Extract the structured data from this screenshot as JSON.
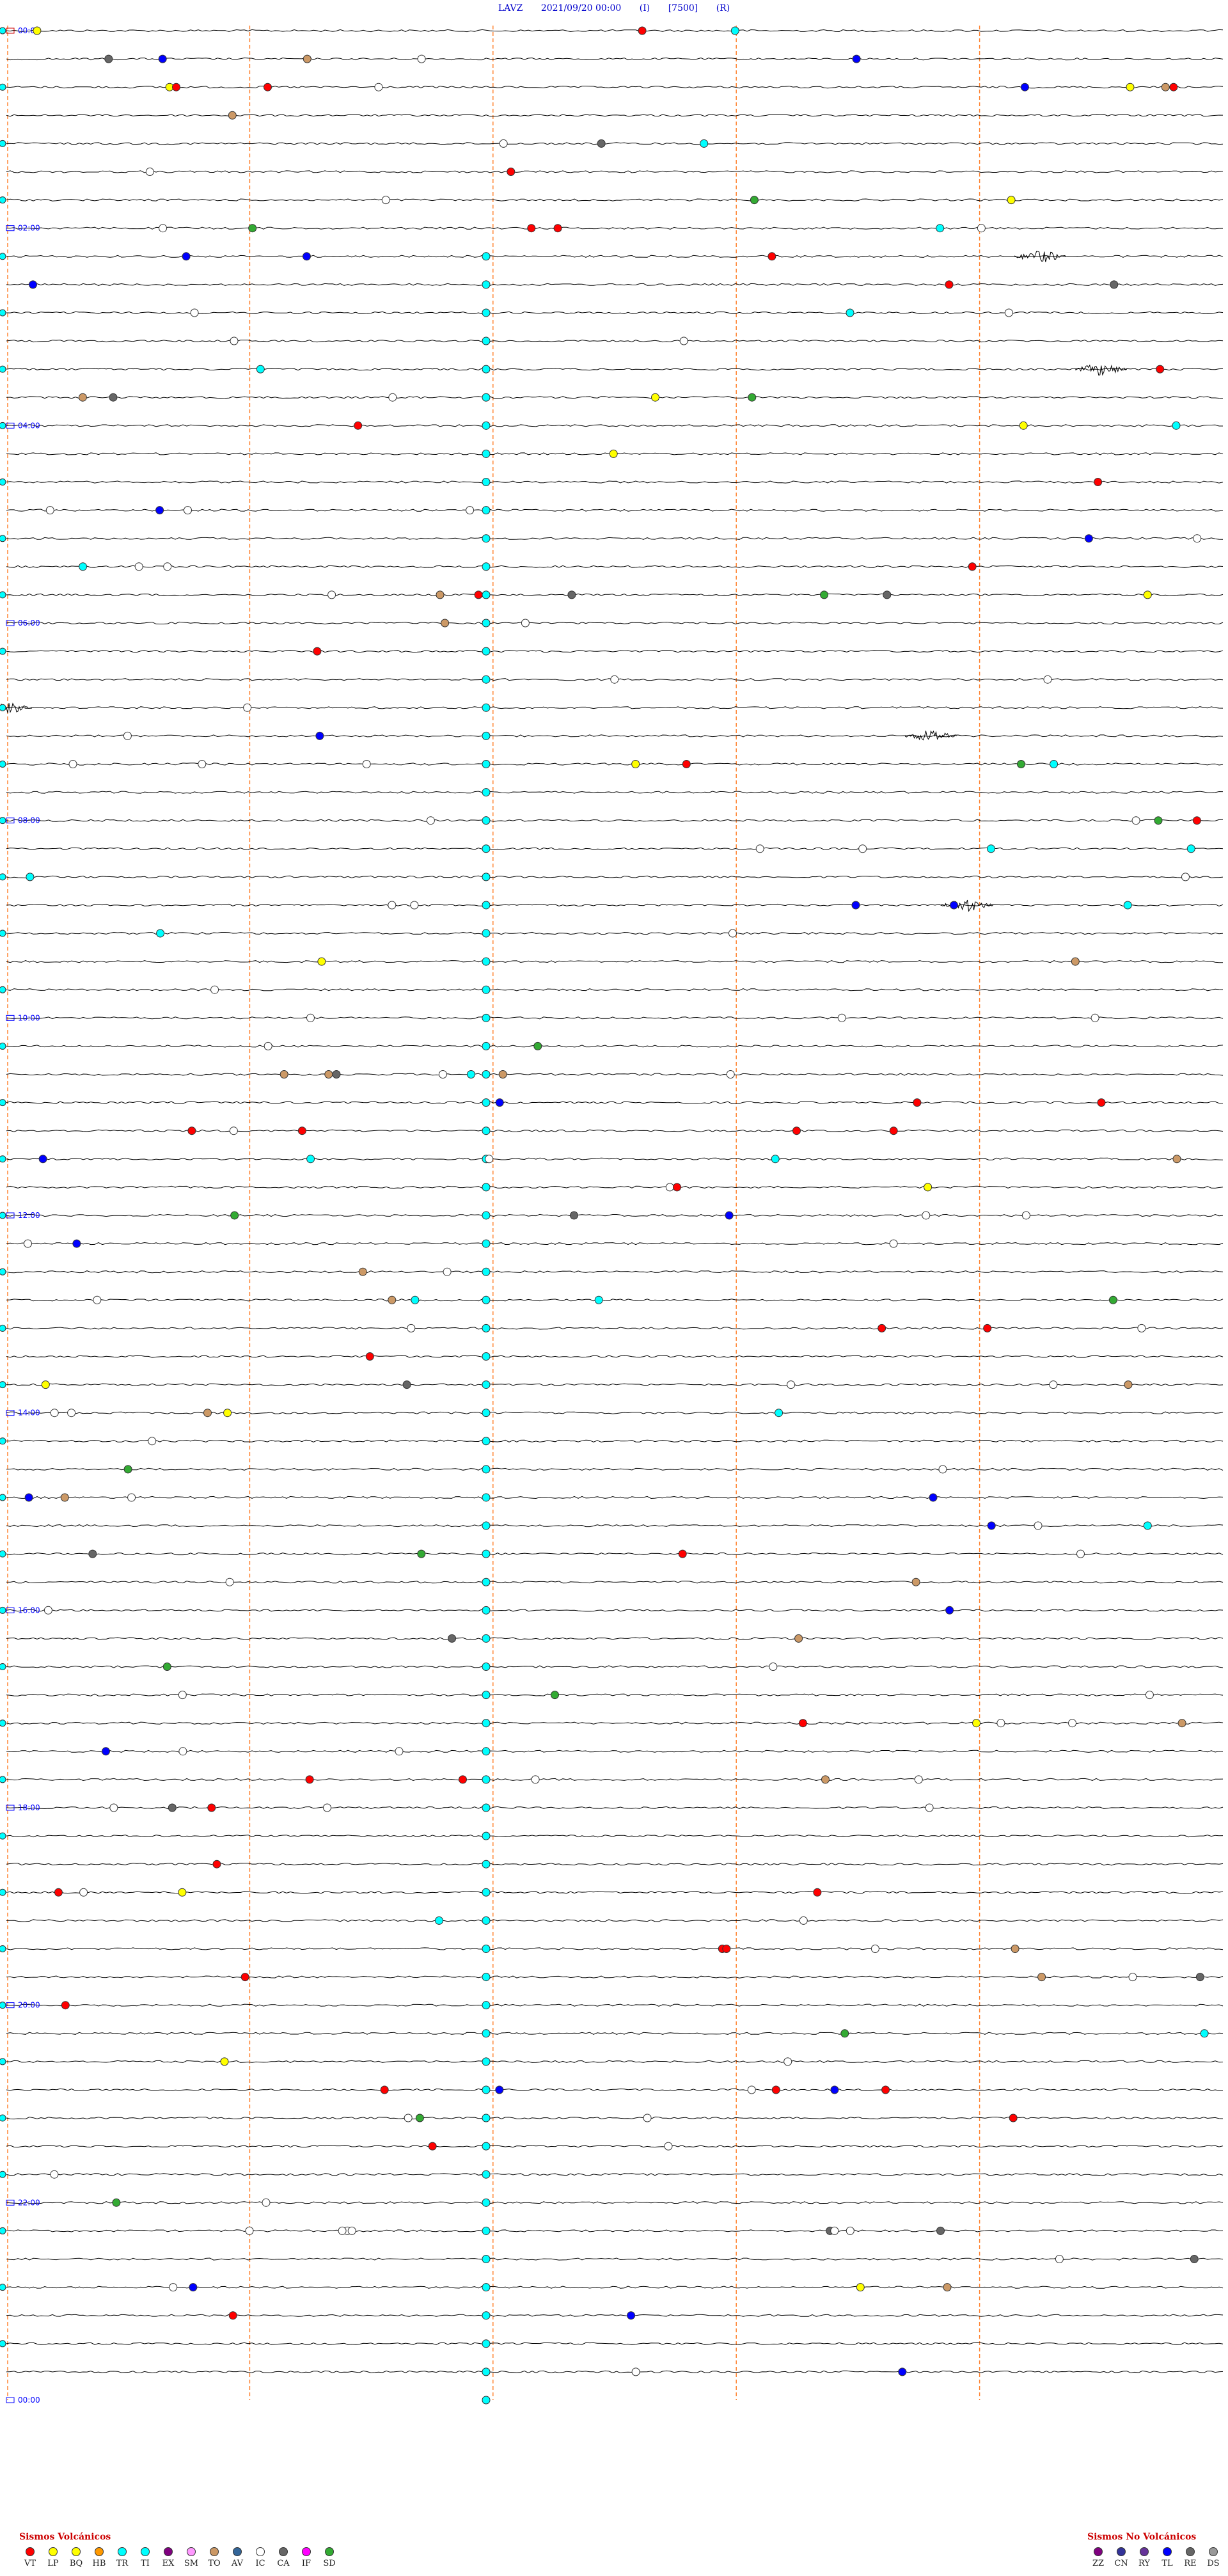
{
  "header": {
    "station": "LAVZ",
    "datetime": "2021/09/20 00:00",
    "component": "(I)",
    "gain": "[7500]",
    "mode": "(R)"
  },
  "chart_data": {
    "type": "seismogram (helicorder)",
    "hour_labels": [
      "00:00",
      "02:00",
      "04:00",
      "06:00",
      "08:00",
      "10:00",
      "12:00",
      "14:00",
      "16:00",
      "18:00",
      "20:00",
      "22:00",
      "00:00"
    ],
    "rows_per_hour": 7,
    "label_colors": {
      "hour_text": "#0000ff",
      "trace": "#000000",
      "minute_marker": "#ff6600"
    },
    "event_colors": {
      "VT": "#ff0000",
      "LP": "#ffff00",
      "BQ": "#ffff00",
      "HB": "#ff9900",
      "TR": "#00ffff",
      "TI": "#00ffff",
      "EX": "#800080",
      "SM": "#ff99ff",
      "TO": "#cc9966",
      "AV": "#336699",
      "IC": "#ffffff",
      "CA": "#666666",
      "IF": "#ff00ff",
      "SD": "#33aa33",
      "ZZ": "#800080",
      "CN": "#333399",
      "RY": "#663399",
      "TL": "#0000ff",
      "RE": "#666666",
      "DS": "#999999"
    }
  },
  "legend_volcanic": {
    "title": "Sismos Volcánicos",
    "items": [
      {
        "code": "VT",
        "color": "#ff0000"
      },
      {
        "code": "LP",
        "color": "#ffff00"
      },
      {
        "code": "BQ",
        "color": "#ffff00"
      },
      {
        "code": "HB",
        "color": "#ff9900"
      },
      {
        "code": "TR",
        "color": "#00ffff"
      },
      {
        "code": "TI",
        "color": "#00ffff"
      },
      {
        "code": "EX",
        "color": "#800080"
      },
      {
        "code": "SM",
        "color": "#ff99ff"
      },
      {
        "code": "TO",
        "color": "#cc9966"
      },
      {
        "code": "AV",
        "color": "#336699"
      },
      {
        "code": "IC",
        "color": "#ffffff"
      },
      {
        "code": "CA",
        "color": "#666666"
      },
      {
        "code": "IF",
        "color": "#ff00ff"
      },
      {
        "code": "SD",
        "color": "#33aa33"
      }
    ]
  },
  "legend_nonvolcanic": {
    "title": "Sismos No Volcánicos",
    "items": [
      {
        "code": "ZZ",
        "color": "#800080"
      },
      {
        "code": "CN",
        "color": "#333399"
      },
      {
        "code": "RY",
        "color": "#663399"
      },
      {
        "code": "TL",
        "color": "#0000ff"
      },
      {
        "code": "RE",
        "color": "#666666"
      },
      {
        "code": "DS",
        "color": "#999999"
      }
    ]
  }
}
